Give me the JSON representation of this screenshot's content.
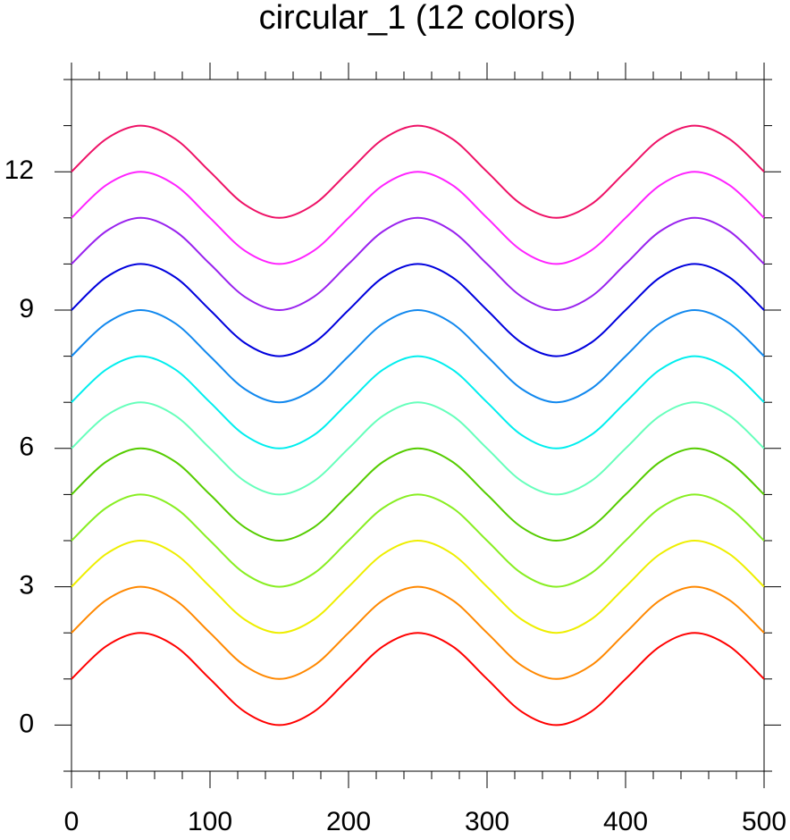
{
  "chart_data": {
    "type": "line",
    "title": "circular_1 (12 colors)",
    "x": [
      0,
      25,
      50,
      75,
      100,
      125,
      150,
      175,
      200,
      225,
      250,
      275,
      300,
      325,
      350,
      375,
      400,
      425,
      450,
      475,
      500
    ],
    "xlim": [
      0,
      500
    ],
    "xticks": [
      0,
      100,
      200,
      300,
      400,
      500
    ],
    "xminorticks": [
      20,
      40,
      60,
      80,
      120,
      140,
      160,
      180,
      220,
      240,
      260,
      280,
      320,
      340,
      360,
      380,
      420,
      440,
      460,
      480
    ],
    "ylim": [
      -1,
      14
    ],
    "yticks": [
      0,
      3,
      6,
      9,
      12
    ],
    "yminorticks": [
      -1,
      1,
      2,
      4,
      5,
      7,
      8,
      10,
      11,
      13,
      14
    ],
    "series": [
      {
        "color": "#ff0000",
        "values": [
          1,
          1.71,
          2,
          1.71,
          1,
          0.29,
          0,
          0.29,
          1,
          1.71,
          2,
          1.71,
          1,
          0.29,
          0,
          0.29,
          1,
          1.71,
          2,
          1.71,
          1
        ]
      },
      {
        "color": "#ff8800",
        "values": [
          2,
          2.71,
          3,
          2.71,
          2,
          1.29,
          1,
          1.29,
          2,
          2.71,
          3,
          2.71,
          2,
          1.29,
          1,
          1.29,
          2,
          2.71,
          3,
          2.71,
          2
        ]
      },
      {
        "color": "#eeee00",
        "values": [
          3,
          3.71,
          4,
          3.71,
          3,
          2.29,
          2,
          2.29,
          3,
          3.71,
          4,
          3.71,
          3,
          2.29,
          2,
          2.29,
          3,
          3.71,
          4,
          3.71,
          3
        ]
      },
      {
        "color": "#88ee22",
        "values": [
          4,
          4.71,
          5,
          4.71,
          4,
          3.29,
          3,
          3.29,
          4,
          4.71,
          5,
          4.71,
          4,
          3.29,
          3,
          3.29,
          4,
          4.71,
          5,
          4.71,
          4
        ]
      },
      {
        "color": "#55cc00",
        "values": [
          5,
          5.71,
          6,
          5.71,
          5,
          4.29,
          4,
          4.29,
          5,
          5.71,
          6,
          5.71,
          5,
          4.29,
          4,
          4.29,
          5,
          5.71,
          6,
          5.71,
          5
        ]
      },
      {
        "color": "#66ffbb",
        "values": [
          6,
          6.71,
          7,
          6.71,
          6,
          5.29,
          5,
          5.29,
          6,
          6.71,
          7,
          6.71,
          6,
          5.29,
          5,
          5.29,
          6,
          6.71,
          7,
          6.71,
          6
        ]
      },
      {
        "color": "#00eeee",
        "values": [
          7,
          7.71,
          8,
          7.71,
          7,
          6.29,
          6,
          6.29,
          7,
          7.71,
          8,
          7.71,
          7,
          6.29,
          6,
          6.29,
          7,
          7.71,
          8,
          7.71,
          7
        ]
      },
      {
        "color": "#1188ee",
        "values": [
          8,
          8.71,
          9,
          8.71,
          8,
          7.29,
          7,
          7.29,
          8,
          8.71,
          9,
          8.71,
          8,
          7.29,
          7,
          7.29,
          8,
          8.71,
          9,
          8.71,
          8
        ]
      },
      {
        "color": "#0000dd",
        "values": [
          9,
          9.71,
          10,
          9.71,
          9,
          8.29,
          8,
          8.29,
          9,
          9.71,
          10,
          9.71,
          9,
          8.29,
          8,
          8.29,
          9,
          9.71,
          10,
          9.71,
          9
        ]
      },
      {
        "color": "#9922ee",
        "values": [
          10,
          10.71,
          11,
          10.71,
          10,
          9.29,
          9,
          9.29,
          10,
          10.71,
          11,
          10.71,
          10,
          9.29,
          9,
          9.29,
          10,
          10.71,
          11,
          10.71,
          10
        ]
      },
      {
        "color": "#ff22ff",
        "values": [
          11,
          11.71,
          12,
          11.71,
          11,
          10.29,
          10,
          10.29,
          11,
          11.71,
          12,
          11.71,
          11,
          10.29,
          10,
          10.29,
          11,
          11.71,
          12,
          11.71,
          11
        ]
      },
      {
        "color": "#ee1166",
        "values": [
          12,
          12.71,
          13,
          12.71,
          12,
          11.29,
          11,
          11.29,
          12,
          12.71,
          13,
          12.71,
          12,
          11.29,
          11,
          11.29,
          12,
          12.71,
          13,
          12.71,
          12
        ]
      }
    ]
  }
}
